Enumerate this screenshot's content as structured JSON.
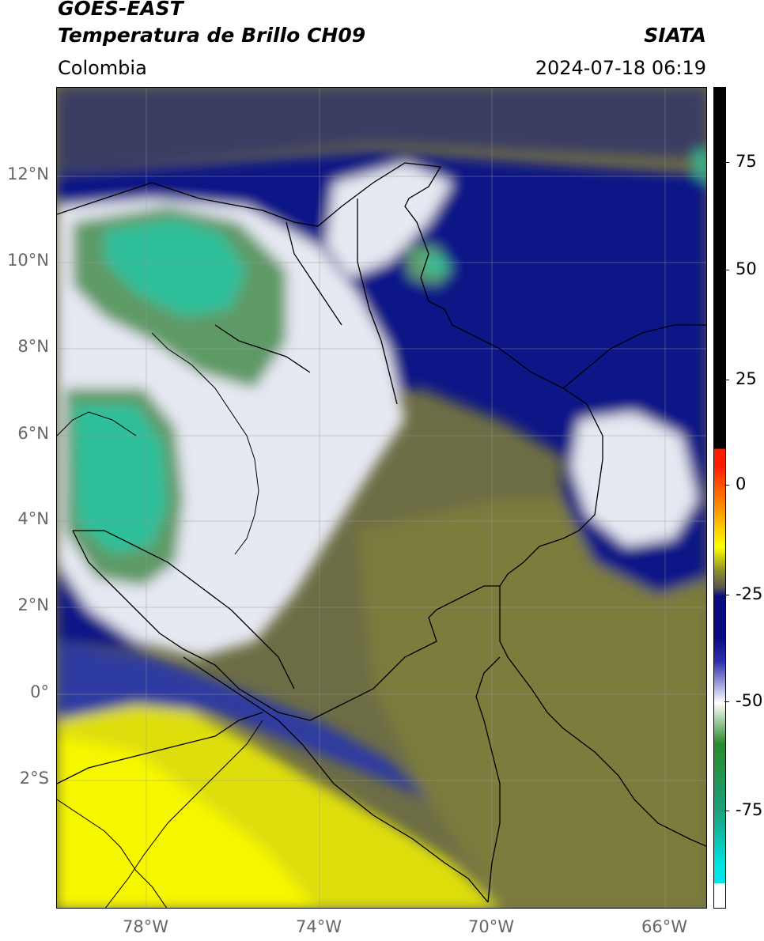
{
  "header": {
    "satellite": "GOES-EAST",
    "product": "Temperatura de Brillo CH09",
    "organization": "SIATA",
    "region": "Colombia",
    "datetime": "2024-07-18 06:19"
  },
  "axes": {
    "lat_labels": [
      "12°N",
      "10°N",
      "8°N",
      "6°N",
      "4°N",
      "2°N",
      "0°",
      "2°S"
    ],
    "lon_labels": [
      "78°W",
      "74°W",
      "70°W",
      "66°W"
    ]
  },
  "colorbar": {
    "labels": [
      "75",
      "50",
      "25",
      "0",
      "-25",
      "-50",
      "-75"
    ],
    "colors": {
      "black": "#000000",
      "red": "#ff1a00",
      "orange": "#ff8c00",
      "yellow": "#ffff00",
      "olive": "#8a8a2a",
      "gray": "#555555",
      "navy": "#0a0a82",
      "blue": "#3030b0",
      "white": "#ffffff",
      "green": "#2a8a2a",
      "teal": "#1aa07a",
      "cyan": "#00e5e5"
    }
  },
  "map_layers": {
    "fill_colors": {
      "base": "#6d6d45",
      "north_sea": "#3a3d63",
      "deep_cloud": "#101486",
      "cloud_blue": "#2d3aa0",
      "cold_white": "#e6e8f2",
      "cold_green": "#5e9a66",
      "coldest_teal": "#2fbf9a",
      "warm_yellow": "#dede10",
      "bright_yellow": "#f7f705",
      "olive_land": "#7c7c3c"
    }
  }
}
